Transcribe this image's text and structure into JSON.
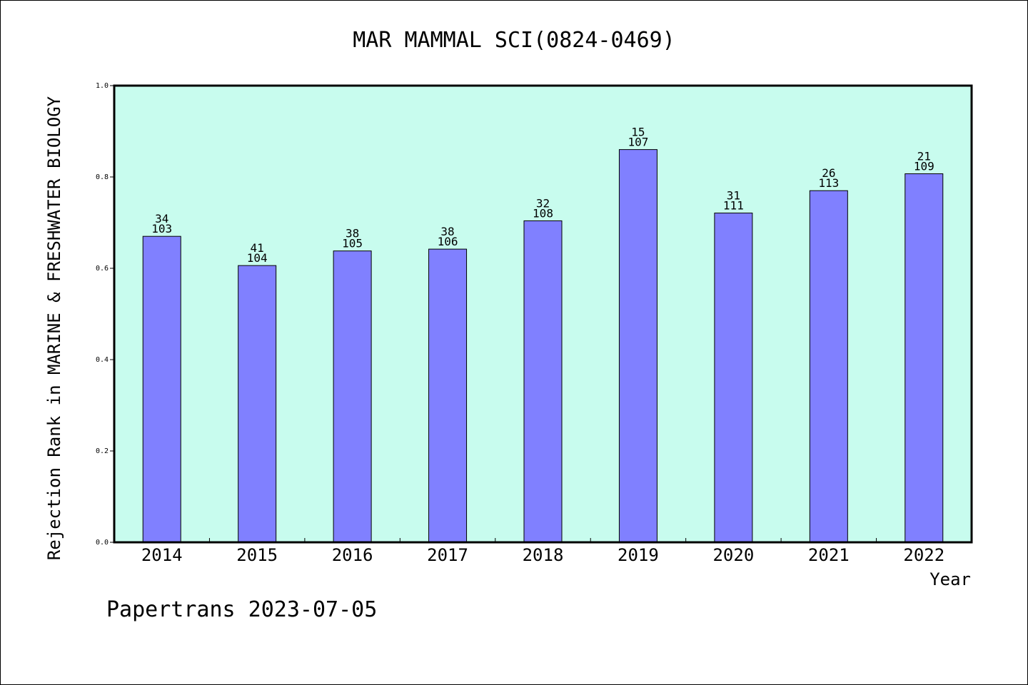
{
  "chart_data": {
    "type": "bar",
    "title": "MAR MAMMAL SCI(0824-0469)",
    "ylabel": "Rejection Rank in MARINE & FRESHWATER BIOLOGY",
    "xlabel": "Year",
    "ylim": [
      0,
      1.0
    ],
    "yticks": [
      0.0,
      0.2,
      0.4,
      0.6,
      0.8,
      1.0
    ],
    "ytick_labels": [
      "0.0",
      "0.2",
      "0.4",
      "0.6",
      "0.8",
      "1.0"
    ],
    "categories": [
      "2014",
      "2015",
      "2016",
      "2017",
      "2018",
      "2019",
      "2020",
      "2021",
      "2022"
    ],
    "values": [
      0.67,
      0.606,
      0.638,
      0.642,
      0.704,
      0.86,
      0.721,
      0.77,
      0.807
    ],
    "rank": [
      "34",
      "41",
      "38",
      "38",
      "32",
      "15",
      "31",
      "26",
      "21"
    ],
    "total": [
      "103",
      "104",
      "105",
      "106",
      "108",
      "107",
      "111",
      "113",
      "109"
    ],
    "grid": false,
    "colors": {
      "bar": "#8080ff",
      "plot_bg": "#c8fcee",
      "bar_edge": "#000000"
    }
  },
  "footer": "Papertrans 2023-07-05"
}
